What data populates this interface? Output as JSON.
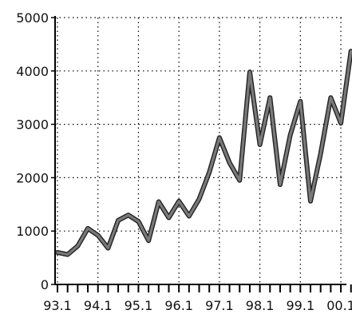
{
  "chart_data": {
    "type": "line",
    "title": "",
    "xlabel": "",
    "ylabel": "",
    "ylim": [
      0,
      5000
    ],
    "y_ticks": [
      "0",
      "1000",
      "2000",
      "3000",
      "4000",
      "5000"
    ],
    "x_tick_labels": [
      "93.1",
      "94.1",
      "95.1",
      "96.1",
      "97.1",
      "98.1",
      "99.1",
      "00.1"
    ],
    "grid": true,
    "series": [
      {
        "x": [
          "93.1",
          "93.2",
          "93.3",
          "93.4",
          "94.1",
          "94.2",
          "94.3",
          "94.4",
          "95.1",
          "95.2",
          "95.3",
          "95.4",
          "96.1",
          "96.2",
          "96.3",
          "96.4",
          "97.1",
          "97.2",
          "97.3",
          "97.4",
          "98.1",
          "98.2",
          "98.3",
          "98.4",
          "99.1",
          "99.2",
          "99.3",
          "99.4",
          "00.1",
          "00.2"
        ],
        "values": [
          600,
          560,
          720,
          1050,
          920,
          680,
          1200,
          1300,
          1180,
          820,
          1550,
          1250,
          1560,
          1280,
          1600,
          2100,
          2750,
          2280,
          1950,
          3980,
          2620,
          3500,
          1870,
          2800,
          3430,
          1560,
          2450,
          3500,
          3020,
          4370
        ]
      }
    ],
    "colors": {
      "line": "#7a7a7a",
      "line_edge": "#222222",
      "axis": "#000000",
      "grid": "#000000"
    }
  }
}
